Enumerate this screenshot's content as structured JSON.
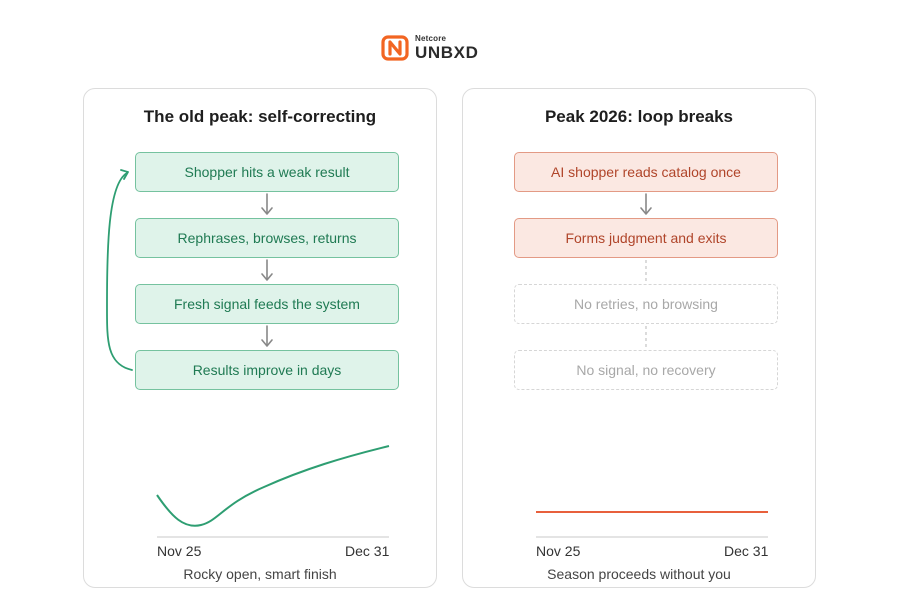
{
  "logo": {
    "small_text": "Netcore",
    "big_text": "UNBXD",
    "accent_color": "#f26522"
  },
  "left_panel": {
    "title": "The old peak: self-correcting",
    "steps": [
      "Shopper hits a weak result",
      "Rephrases, browses, returns",
      "Fresh signal feeds the system",
      "Results improve in days"
    ],
    "loop_back": true,
    "chart": {
      "x_start_label": "Nov 25",
      "x_end_label": "Dec 31",
      "line_color": "#2e9e72",
      "shape": "dips early then rises steadily"
    },
    "caption": "Rocky open, smart finish"
  },
  "right_panel": {
    "title": "Peak 2026: loop breaks",
    "steps": [
      "AI shopper reads catalog once",
      "Forms judgment and exits"
    ],
    "ghost_steps": [
      "No retries, no browsing",
      "No signal, no recovery"
    ],
    "chart": {
      "x_start_label": "Nov 25",
      "x_end_label": "Dec 31",
      "line_color": "#e8603c",
      "shape": "flat"
    },
    "caption": "Season proceeds without you"
  },
  "colors": {
    "green_fill": "#dff3ea",
    "green_border": "#75c29f",
    "green_text": "#1f7a53",
    "red_fill": "#fbe8e2",
    "red_border": "#e39a85",
    "red_text": "#b0452a",
    "ghost_border": "#d6d6d6",
    "ghost_text": "#a8a8a8"
  }
}
